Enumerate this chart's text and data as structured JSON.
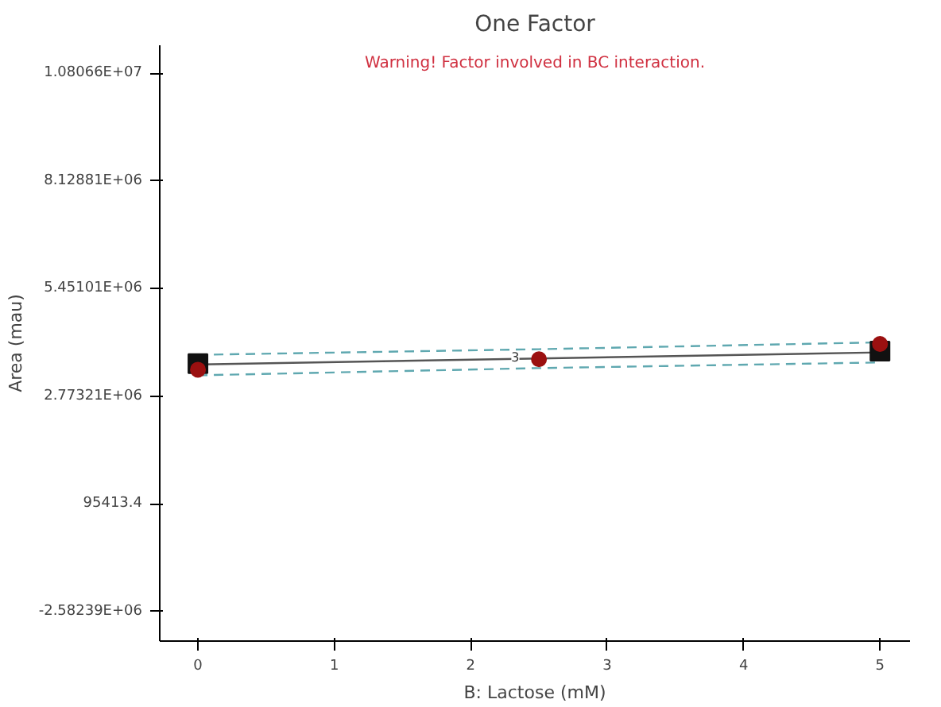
{
  "chart_data": {
    "type": "line",
    "title": "One Factor",
    "xlabel": "B: Lactose (mM)",
    "ylabel": "Area (mau)",
    "annotations": [
      "Warning! Factor involved in BC interaction.",
      {
        "text": "3",
        "x": 2.38,
        "y": 3760000
      }
    ],
    "xlim": [
      -0.28,
      5.22
    ],
    "xticks": [
      0,
      1,
      2,
      3,
      4,
      5
    ],
    "ylim": [
      -3320000,
      11500000
    ],
    "yticks": [
      {
        "value": -2582390,
        "label": "-2.58239E+06"
      },
      95413.4,
      {
        "value": 2773210,
        "label": "2.77321E+06"
      },
      {
        "value": 5451010,
        "label": "5.45101E+06"
      },
      {
        "value": 8128810,
        "label": "8.12881E+06"
      },
      {
        "value": 10806600,
        "label": "1.08066E+07"
      }
    ],
    "grid": false,
    "series": [
      {
        "color": "#5fa8b0",
        "line_style": "dashed",
        "marker": "none",
        "x": [
          0,
          2.5,
          5
        ],
        "values": [
          3800000,
          3940000,
          4110000
        ]
      },
      {
        "color": "#5fa8b0",
        "line_style": "dashed",
        "marker": "none",
        "x": [
          0,
          2.5,
          5
        ],
        "values": [
          3290000,
          3470000,
          3610000
        ]
      },
      {
        "color": "#555555",
        "line_style": "solid",
        "marker": "none",
        "x": [
          0,
          5
        ],
        "values": [
          3560000,
          3860000
        ]
      },
      {
        "type": "scatter",
        "color": "#111111",
        "marker": "square",
        "x": [
          0,
          5
        ],
        "values": [
          3580000,
          3890000
        ]
      },
      {
        "type": "scatter",
        "color": "#9b1010",
        "marker": "circle",
        "x": [
          0,
          2.5,
          5
        ],
        "values": [
          3430000,
          3690000,
          4070000
        ]
      }
    ]
  }
}
